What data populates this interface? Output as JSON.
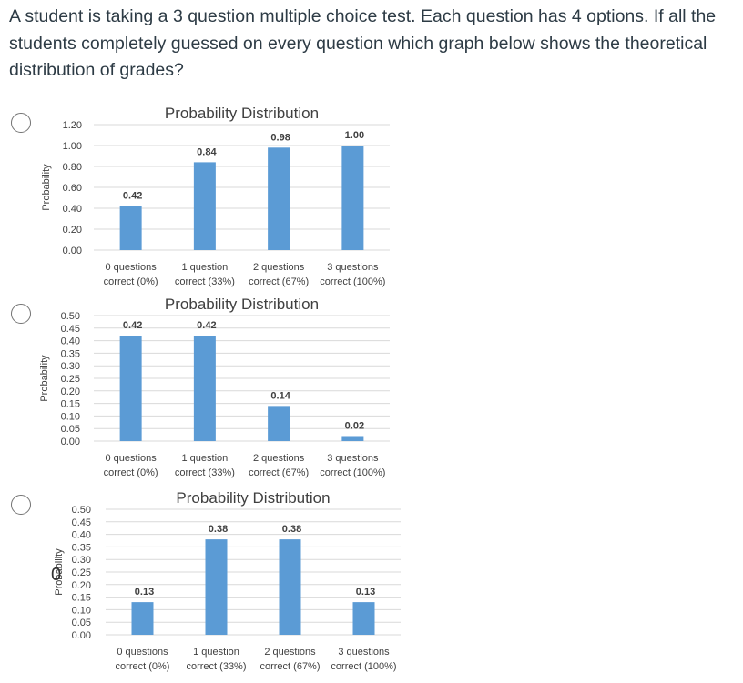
{
  "question": {
    "text": "A student is taking a 3 question multiple choice test.  Each question has 4 options.  If all the students completely guessed on every question which graph below shows the theoretical distribution of grades?"
  },
  "colors": {
    "bar": "#5b9bd5",
    "grid": "#d9d9d9",
    "text": "#404040",
    "title": "#404040"
  },
  "options": [
    {
      "chart_data": {
        "type": "bar",
        "title": "Probability Distribution",
        "ylabel": "Probability",
        "xlabel": "",
        "categories": [
          [
            "0 questions",
            "correct (0%)"
          ],
          [
            "1 question",
            "correct (33%)"
          ],
          [
            "2 questions",
            "correct (67%)"
          ],
          [
            "3 questions",
            "correct (100%)"
          ]
        ],
        "values": [
          0.42,
          0.84,
          0.98,
          1.0
        ],
        "value_labels": [
          "0.42",
          "0.84",
          "0.98",
          "1.00"
        ],
        "ylim": [
          0,
          1.2
        ],
        "yticks": [
          "0.00",
          "0.20",
          "0.40",
          "0.60",
          "0.80",
          "1.00",
          "1.20"
        ],
        "grid": true
      }
    },
    {
      "chart_data": {
        "type": "bar",
        "title": "Probability Distribution",
        "ylabel": "Probability",
        "xlabel": "",
        "categories": [
          [
            "0 questions",
            "correct (0%)"
          ],
          [
            "1 question",
            "correct (33%)"
          ],
          [
            "2 questions",
            "correct (67%)"
          ],
          [
            "3 questions",
            "correct (100%)"
          ]
        ],
        "values": [
          0.42,
          0.42,
          0.14,
          0.02
        ],
        "value_labels": [
          "0.42",
          "0.42",
          "0.14",
          "0.02"
        ],
        "ylim": [
          0,
          0.5
        ],
        "yticks": [
          "0.00",
          "0.05",
          "0.10",
          "0.15",
          "0.20",
          "0.25",
          "0.30",
          "0.35",
          "0.40",
          "0.45",
          "0.50"
        ],
        "grid": true
      }
    },
    {
      "chart_data": {
        "type": "bar",
        "title": "Probability Distribution",
        "ylabel": "Probability",
        "xlabel": "",
        "categories": [
          [
            "0 questions",
            "correct (0%)"
          ],
          [
            "1 question",
            "correct (33%)"
          ],
          [
            "2 questions",
            "correct (67%)"
          ],
          [
            "3 questions",
            "correct (100%)"
          ]
        ],
        "values": [
          0.13,
          0.38,
          0.38,
          0.13
        ],
        "value_labels": [
          "0.13",
          "0.38",
          "0.38",
          "0.13"
        ],
        "ylim": [
          0,
          0.5
        ],
        "yticks": [
          "0.00",
          "0.05",
          "0.10",
          "0.15",
          "0.20",
          "0.25",
          "0.30",
          "0.35",
          "0.40",
          "0.45",
          "0.50"
        ],
        "grid": true
      }
    }
  ],
  "stray_mark": "0"
}
